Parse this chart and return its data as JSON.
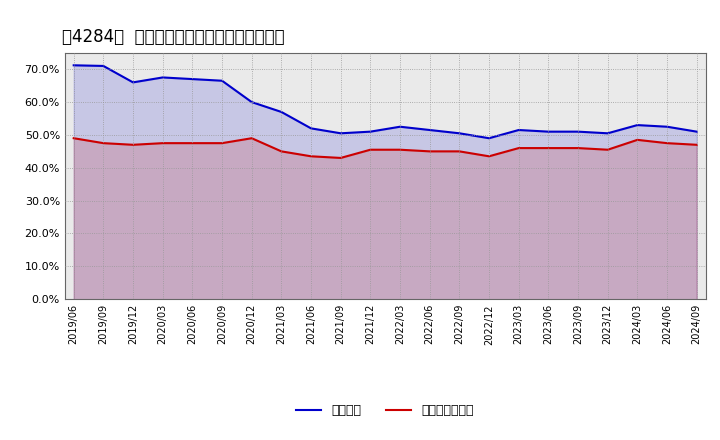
{
  "title": "［4284］  固定比率、固定長期適合率の推移",
  "x_labels": [
    "2019/06",
    "2019/09",
    "2019/12",
    "2020/03",
    "2020/06",
    "2020/09",
    "2020/12",
    "2021/03",
    "2021/06",
    "2021/09",
    "2021/12",
    "2022/03",
    "2022/06",
    "2022/09",
    "2022/12",
    "2023/03",
    "2023/06",
    "2023/09",
    "2023/12",
    "2024/03",
    "2024/06",
    "2024/09"
  ],
  "fixed_ratio": [
    71.2,
    71.0,
    66.0,
    67.5,
    67.0,
    66.5,
    60.0,
    57.0,
    52.0,
    50.5,
    51.0,
    52.5,
    51.5,
    50.5,
    49.0,
    51.5,
    51.0,
    51.0,
    50.5,
    53.0,
    52.5,
    51.0
  ],
  "fixed_long_ratio": [
    49.0,
    47.5,
    47.0,
    47.5,
    47.5,
    47.5,
    49.0,
    45.0,
    43.5,
    43.0,
    45.5,
    45.5,
    45.0,
    45.0,
    43.5,
    46.0,
    46.0,
    46.0,
    45.5,
    48.5,
    47.5,
    47.0
  ],
  "line1_color": "#0000cc",
  "line2_color": "#cc0000",
  "legend1": "固定比率",
  "legend2": "固定長期適合率",
  "ylim": [
    0,
    75
  ],
  "yticks": [
    0,
    10,
    20,
    30,
    40,
    50,
    60,
    70
  ],
  "bg_color": "#ffffff",
  "plot_bg_color": "#eaeaea",
  "grid_color": "#999999",
  "title_fontsize": 12
}
